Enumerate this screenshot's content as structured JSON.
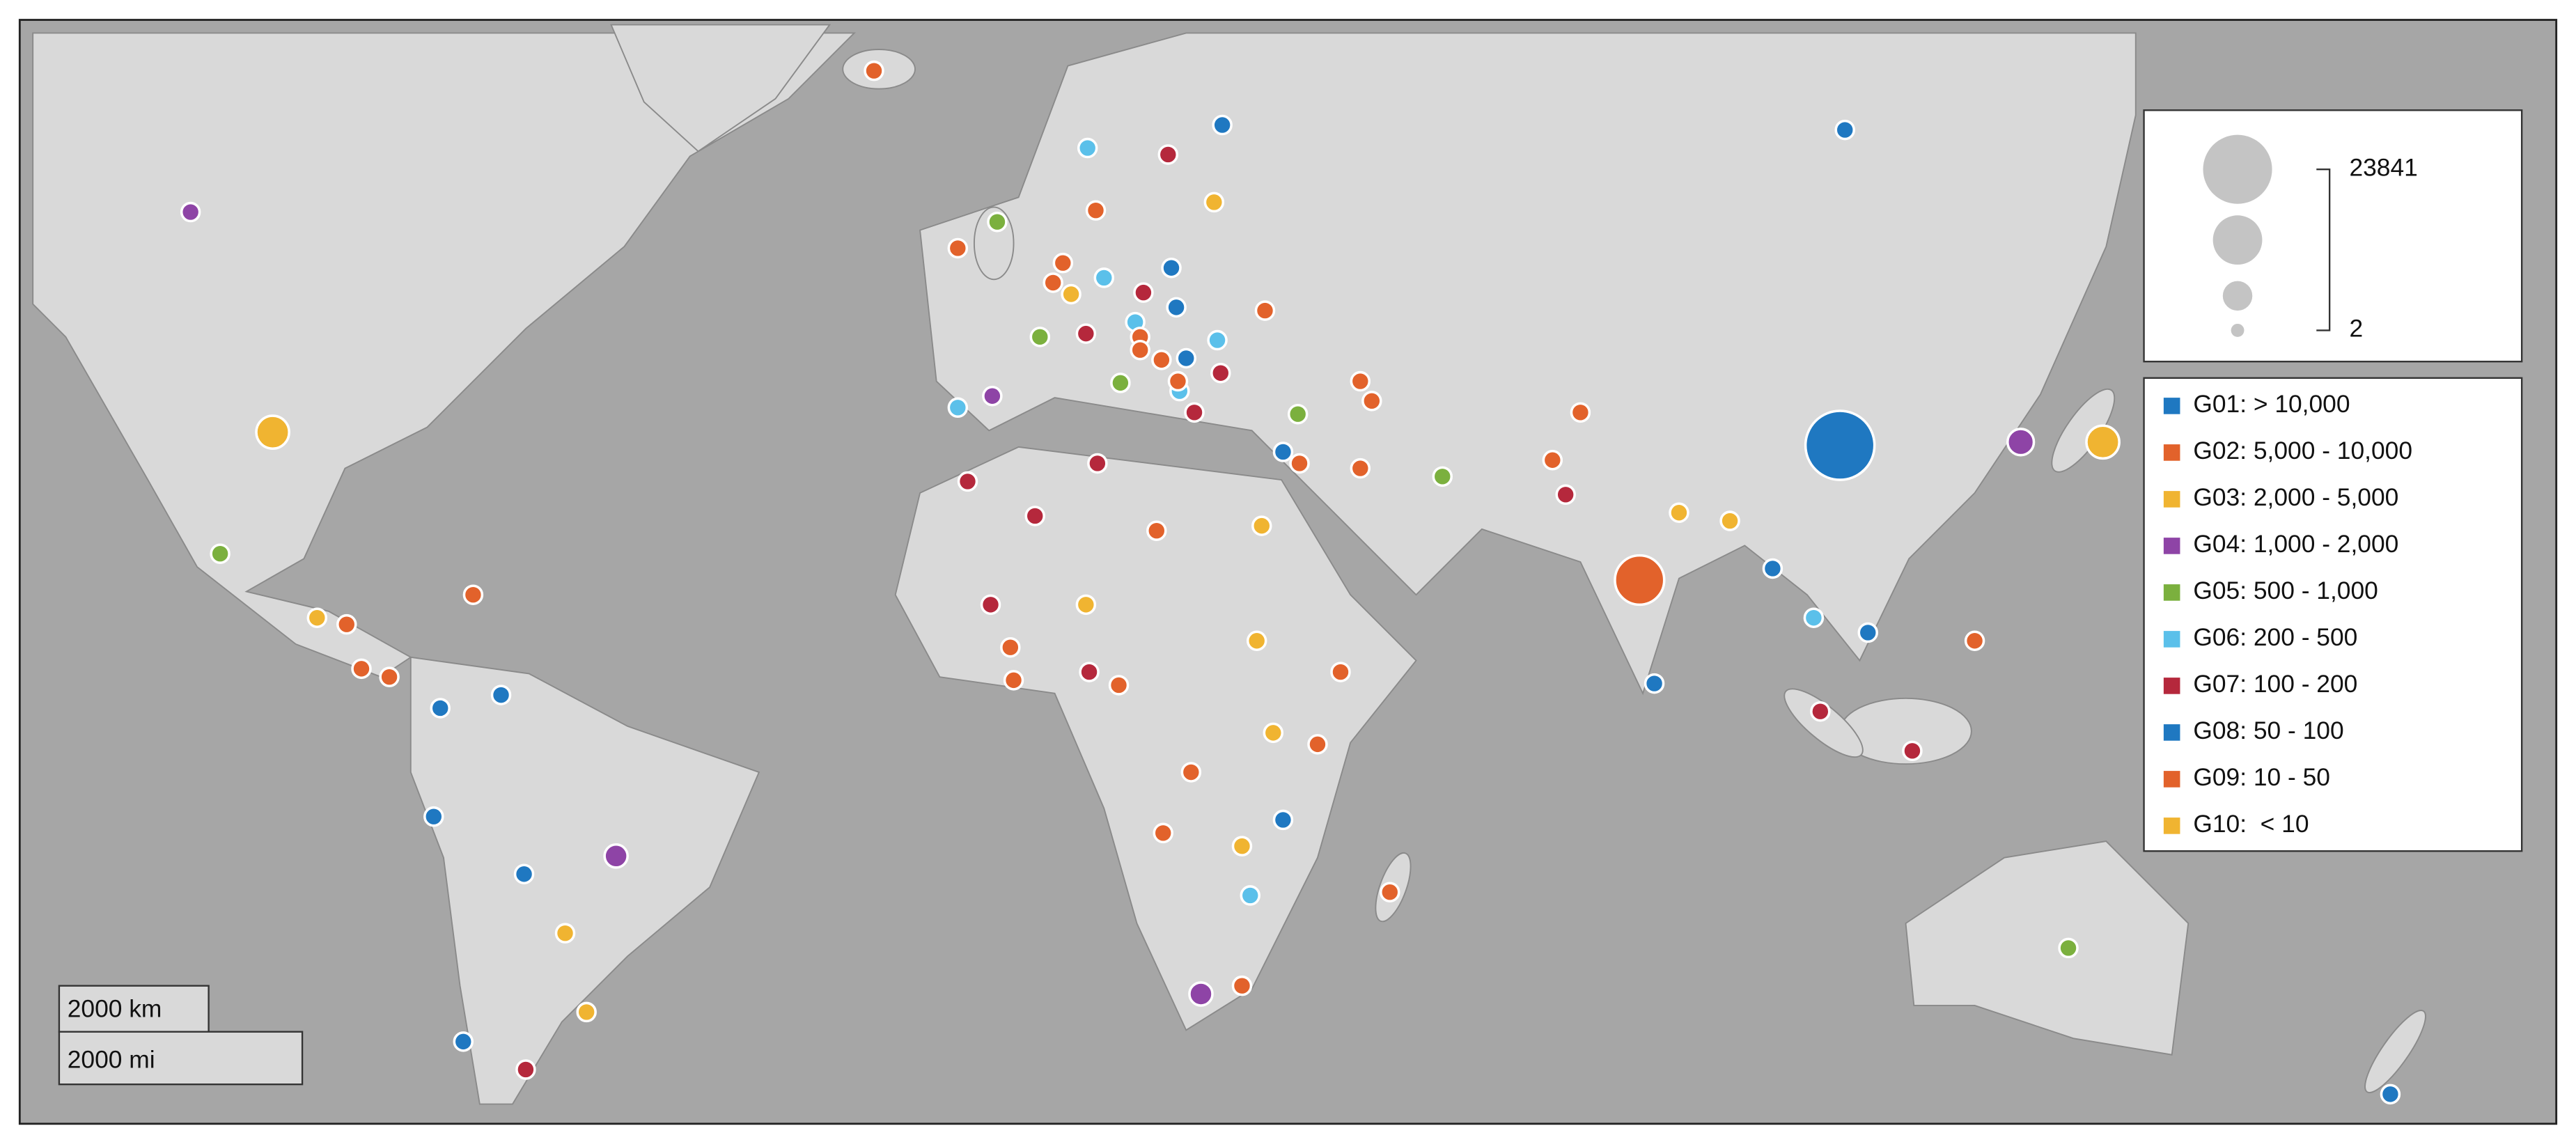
{
  "size_legend": {
    "max_label": "23841",
    "min_label": "2"
  },
  "legend": [
    {
      "label": "G01: > 10,000",
      "color": "#1f78c1"
    },
    {
      "label": "G02: 5,000 - 10,000",
      "color": "#e2622b"
    },
    {
      "label": "G03: 2,000 - 5,000",
      "color": "#f0b431"
    },
    {
      "label": "G04: 1,000 - 2,000",
      "color": "#8e44a6"
    },
    {
      "label": "G05: 500 - 1,000",
      "color": "#7bb03e"
    },
    {
      "label": "G06: 200 - 500",
      "color": "#5bc0ea"
    },
    {
      "label": "G07: 100 - 200",
      "color": "#b5283c"
    },
    {
      "label": "G08: 50 - 100",
      "color": "#1f78c1"
    },
    {
      "label": "G09: 10 - 50",
      "color": "#e2622b"
    },
    {
      "label": "G10:  < 10",
      "color": "#f0b431"
    }
  ],
  "scale_bar": {
    "km": "2000 km",
    "mi": "2000 mi"
  }
}
